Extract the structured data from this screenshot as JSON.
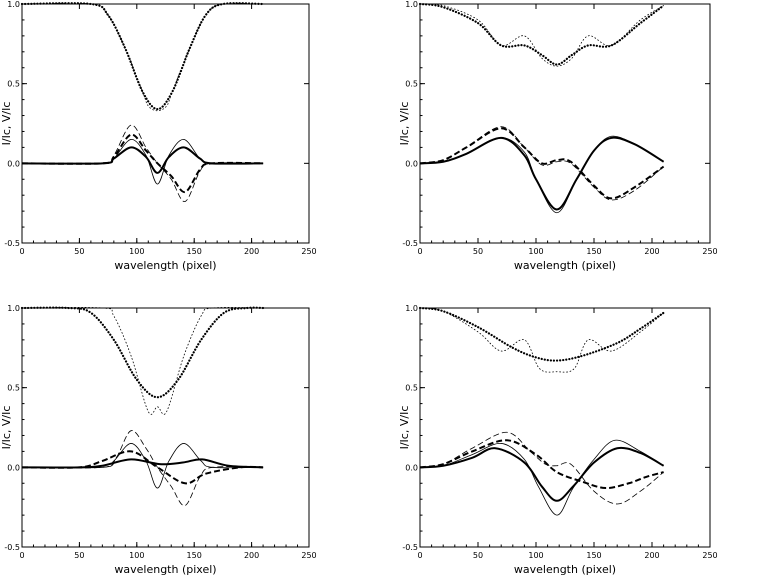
{
  "chart_data": [
    {
      "type": "line",
      "panel": "top-left",
      "xlabel": "wavelength (pixel)",
      "ylabel": "I/Ic, V/Ic",
      "xlim": [
        0,
        250
      ],
      "ylim": [
        -0.5,
        1.0
      ],
      "xticks": [
        "0",
        "50",
        "100",
        "150",
        "200",
        "250"
      ],
      "yticks": [
        "-0.5",
        "0.0",
        "0.5",
        "1.0"
      ],
      "series": [
        {
          "style": "dotted-thin",
          "x": [
            0,
            60,
            75,
            90,
            105,
            110,
            118,
            126,
            131,
            146,
            160,
            175,
            210
          ],
          "y": [
            1.0,
            1.0,
            0.93,
            0.72,
            0.45,
            0.36,
            0.33,
            0.36,
            0.45,
            0.72,
            0.93,
            1.0,
            1.0
          ]
        },
        {
          "style": "dotted-thick",
          "x": [
            0,
            60,
            75,
            90,
            105,
            118,
            131,
            146,
            160,
            175,
            210
          ],
          "y": [
            1.0,
            1.0,
            0.93,
            0.72,
            0.45,
            0.34,
            0.45,
            0.72,
            0.93,
            1.0,
            1.0
          ]
        },
        {
          "style": "solid-thin",
          "x": [
            0,
            70,
            80,
            95,
            108,
            118,
            128,
            141,
            155,
            165,
            210
          ],
          "y": [
            0,
            0,
            0.03,
            0.15,
            0.05,
            -0.13,
            0.05,
            0.15,
            0.03,
            0,
            0
          ]
        },
        {
          "style": "solid-thick",
          "x": [
            0,
            70,
            80,
            95,
            108,
            118,
            128,
            141,
            155,
            165,
            210
          ],
          "y": [
            0,
            0,
            0.03,
            0.1,
            0.04,
            -0.06,
            0.04,
            0.1,
            0.03,
            0,
            0
          ]
        },
        {
          "style": "dashed-thin",
          "x": [
            0,
            70,
            80,
            95,
            108,
            118,
            130,
            142,
            155,
            165,
            210
          ],
          "y": [
            0,
            0,
            0.05,
            0.24,
            0.1,
            0,
            -0.1,
            -0.24,
            -0.05,
            0,
            0
          ]
        },
        {
          "style": "dashed-thick",
          "x": [
            0,
            70,
            80,
            95,
            108,
            118,
            130,
            142,
            155,
            165,
            210
          ],
          "y": [
            0,
            0,
            0.04,
            0.18,
            0.08,
            0,
            -0.08,
            -0.18,
            -0.04,
            0,
            0
          ]
        }
      ]
    },
    {
      "type": "line",
      "panel": "top-right",
      "xlabel": "wavelength (pixel)",
      "ylabel": "I/Ic, V/Ic",
      "xlim": [
        0,
        250
      ],
      "ylim": [
        -0.5,
        1.0
      ],
      "xticks": [
        "0",
        "50",
        "100",
        "150",
        "200",
        "250"
      ],
      "yticks": [
        "-0.5",
        "0.0",
        "0.5",
        "1.0"
      ],
      "series": [
        {
          "style": "dotted-thin",
          "x": [
            0,
            20,
            50,
            70,
            90,
            105,
            118,
            131,
            145,
            165,
            190,
            210
          ],
          "y": [
            1.0,
            0.99,
            0.9,
            0.74,
            0.8,
            0.66,
            0.61,
            0.66,
            0.8,
            0.74,
            0.9,
            0.99
          ]
        },
        {
          "style": "dotted-thick",
          "x": [
            0,
            20,
            50,
            70,
            90,
            105,
            118,
            131,
            145,
            165,
            190,
            210
          ],
          "y": [
            1.0,
            0.98,
            0.88,
            0.74,
            0.74,
            0.68,
            0.62,
            0.68,
            0.74,
            0.74,
            0.88,
            0.99
          ]
        },
        {
          "style": "solid-thin",
          "x": [
            0,
            20,
            40,
            70,
            90,
            100,
            118,
            135,
            150,
            165,
            185,
            210
          ],
          "y": [
            0,
            0.01,
            0.06,
            0.16,
            0.07,
            -0.1,
            -0.31,
            -0.1,
            0.08,
            0.17,
            0.12,
            0.01
          ]
        },
        {
          "style": "solid-thick",
          "x": [
            0,
            20,
            40,
            70,
            90,
            100,
            118,
            135,
            150,
            165,
            185,
            210
          ],
          "y": [
            0,
            0.01,
            0.06,
            0.16,
            0.05,
            -0.1,
            -0.29,
            -0.1,
            0.08,
            0.16,
            0.12,
            0.01
          ]
        },
        {
          "style": "dashed-thin",
          "x": [
            0,
            20,
            40,
            70,
            90,
            105,
            118,
            130,
            150,
            165,
            185,
            210
          ],
          "y": [
            0,
            0.02,
            0.1,
            0.23,
            0.1,
            -0.01,
            0.01,
            0.0,
            -0.15,
            -0.23,
            -0.17,
            -0.02
          ]
        },
        {
          "style": "dashed-thick",
          "x": [
            0,
            20,
            40,
            70,
            90,
            105,
            118,
            130,
            150,
            165,
            185,
            210
          ],
          "y": [
            0,
            0.02,
            0.1,
            0.22,
            0.1,
            -0.0,
            0.02,
            0.01,
            -0.14,
            -0.22,
            -0.15,
            -0.02
          ]
        }
      ]
    },
    {
      "type": "line",
      "panel": "bottom-left",
      "xlabel": "wavelength (pixel)",
      "ylabel": "I/Ic, V/Ic",
      "xlim": [
        0,
        250
      ],
      "ylim": [
        -0.5,
        1.0
      ],
      "xticks": [
        "0",
        "50",
        "100",
        "150",
        "200",
        "250"
      ],
      "yticks": [
        "-0.5",
        "0.0",
        "0.5",
        "1.0"
      ],
      "series": [
        {
          "style": "dotted-thin",
          "x": [
            0,
            70,
            80,
            95,
            110,
            118,
            126,
            141,
            156,
            166,
            210
          ],
          "y": [
            1.0,
            1.0,
            0.95,
            0.7,
            0.35,
            0.38,
            0.35,
            0.7,
            0.95,
            1.0,
            1.0
          ]
        },
        {
          "style": "dotted-thick",
          "x": [
            0,
            40,
            60,
            80,
            100,
            118,
            136,
            156,
            176,
            196,
            210
          ],
          "y": [
            1.0,
            1.0,
            0.97,
            0.8,
            0.55,
            0.44,
            0.55,
            0.8,
            0.97,
            1.0,
            1.0
          ]
        },
        {
          "style": "solid-thin",
          "x": [
            0,
            70,
            80,
            95,
            108,
            118,
            128,
            141,
            156,
            166,
            210
          ],
          "y": [
            0,
            0,
            0.04,
            0.15,
            0.04,
            -0.13,
            0.04,
            0.15,
            0.04,
            0,
            0
          ]
        },
        {
          "style": "solid-thick",
          "x": [
            0,
            50,
            70,
            95,
            120,
            140,
            157,
            180,
            210
          ],
          "y": [
            0,
            0,
            0.01,
            0.05,
            0.02,
            0.03,
            0.05,
            0.01,
            0
          ]
        },
        {
          "style": "dashed-thin",
          "x": [
            0,
            70,
            82,
            95,
            108,
            118,
            130,
            142,
            155,
            166,
            210
          ],
          "y": [
            0,
            0,
            0.06,
            0.23,
            0.12,
            0.0,
            -0.12,
            -0.24,
            -0.06,
            0,
            0
          ]
        },
        {
          "style": "dashed-thick",
          "x": [
            0,
            50,
            70,
            95,
            118,
            142,
            160,
            190,
            210
          ],
          "y": [
            0,
            0,
            0.04,
            0.1,
            0.0,
            -0.1,
            -0.04,
            0,
            0
          ]
        }
      ]
    },
    {
      "type": "line",
      "panel": "bottom-right",
      "xlabel": "wavelength (pixel)",
      "ylabel": "I/Ic, V/Ic",
      "xlim": [
        0,
        250
      ],
      "ylim": [
        -0.5,
        1.0
      ],
      "xticks": [
        "0",
        "50",
        "100",
        "150",
        "200",
        "250"
      ],
      "yticks": [
        "-0.5",
        "0.0",
        "0.5",
        "1.0"
      ],
      "series": [
        {
          "style": "dotted-thin",
          "x": [
            0,
            20,
            50,
            70,
            90,
            103,
            118,
            133,
            145,
            165,
            190,
            210
          ],
          "y": [
            1.0,
            0.98,
            0.85,
            0.73,
            0.8,
            0.62,
            0.6,
            0.62,
            0.8,
            0.73,
            0.85,
            0.97
          ]
        },
        {
          "style": "dotted-thick",
          "x": [
            0,
            20,
            50,
            80,
            100,
            118,
            140,
            170,
            190,
            210
          ],
          "y": [
            1.0,
            0.98,
            0.88,
            0.75,
            0.69,
            0.67,
            0.7,
            0.78,
            0.87,
            0.97
          ]
        },
        {
          "style": "solid-thin",
          "x": [
            0,
            20,
            45,
            70,
            90,
            102,
            118,
            132,
            150,
            168,
            190,
            210
          ],
          "y": [
            0,
            0.01,
            0.08,
            0.15,
            0.05,
            -0.12,
            -0.3,
            -0.13,
            0.05,
            0.17,
            0.1,
            0.01
          ]
        },
        {
          "style": "solid-thick",
          "x": [
            0,
            20,
            45,
            65,
            90,
            105,
            118,
            132,
            150,
            170,
            190,
            210
          ],
          "y": [
            0,
            0.01,
            0.06,
            0.12,
            0.03,
            -0.12,
            -0.21,
            -0.12,
            0.03,
            0.12,
            0.09,
            0.01
          ]
        },
        {
          "style": "dashed-thin",
          "x": [
            0,
            20,
            45,
            75,
            95,
            108,
            118,
            130,
            150,
            170,
            190,
            210
          ],
          "y": [
            0,
            0.02,
            0.12,
            0.22,
            0.1,
            0.02,
            0.01,
            0.02,
            -0.15,
            -0.23,
            -0.15,
            -0.03
          ]
        },
        {
          "style": "dashed-thick",
          "x": [
            0,
            20,
            45,
            75,
            100,
            118,
            140,
            160,
            180,
            195,
            210
          ],
          "y": [
            0,
            0.02,
            0.1,
            0.17,
            0.08,
            -0.03,
            -0.09,
            -0.13,
            -0.1,
            -0.06,
            -0.03
          ]
        }
      ]
    }
  ]
}
